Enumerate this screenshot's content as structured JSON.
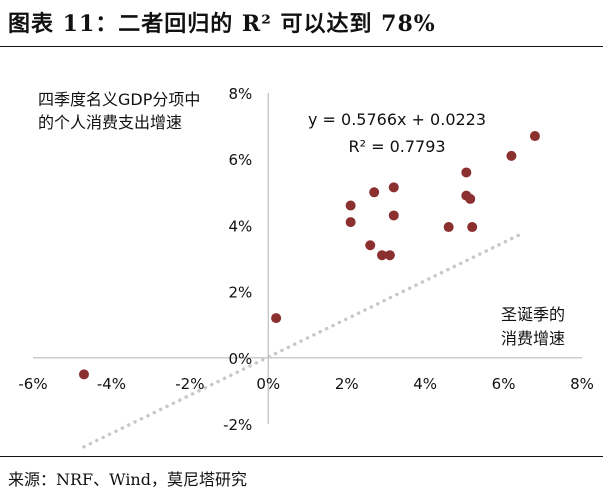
{
  "figure": {
    "title": "图表 11：二者回归的 R² 可以达到 78%",
    "source": "来源：NRF、Wind，莫尼塔研究"
  },
  "chart_data": {
    "type": "scatter",
    "title": "",
    "ylabel": "四季度名义GDP分项中的个人消费支出增速",
    "ylabel_lines": [
      "四季度名义GDP分项中",
      "的个人消费支出增速"
    ],
    "xlabel": "圣诞季的消费增速",
    "xlabel_lines": [
      "圣诞季的",
      "消费增速"
    ],
    "xlim": [
      -6,
      8
    ],
    "ylim": [
      -2,
      8
    ],
    "x_ticks": [
      -6,
      -4,
      -2,
      0,
      2,
      4,
      6,
      8
    ],
    "y_ticks": [
      -2,
      0,
      2,
      4,
      6,
      8
    ],
    "x_tick_labels": [
      "-6%",
      "-4%",
      "-2%",
      "0%",
      "2%",
      "4%",
      "6%",
      "8%"
    ],
    "y_tick_labels": [
      "-2%",
      "0%",
      "2%",
      "4%",
      "6%",
      "8%"
    ],
    "grid": false,
    "point_color": "#8b2f2f",
    "trend_color": "#c8c8c8",
    "trendline": {
      "slope": 0.5766,
      "intercept": 0.0223,
      "x_range": [
        -4.7,
        6.5
      ]
    },
    "annotations": [
      "y = 0.5766x + 0.0223",
      "R² = 0.7793"
    ],
    "points": [
      {
        "x": -4.7,
        "y": -0.5
      },
      {
        "x": 0.2,
        "y": 1.2
      },
      {
        "x": 2.1,
        "y": 4.1
      },
      {
        "x": 2.1,
        "y": 4.6
      },
      {
        "x": 2.6,
        "y": 3.4
      },
      {
        "x": 2.7,
        "y": 5.0
      },
      {
        "x": 2.9,
        "y": 3.1
      },
      {
        "x": 3.1,
        "y": 3.1
      },
      {
        "x": 3.2,
        "y": 4.3
      },
      {
        "x": 3.2,
        "y": 5.15
      },
      {
        "x": 4.6,
        "y": 3.95
      },
      {
        "x": 5.05,
        "y": 5.6
      },
      {
        "x": 5.05,
        "y": 4.9
      },
      {
        "x": 5.15,
        "y": 4.8
      },
      {
        "x": 5.2,
        "y": 3.95
      },
      {
        "x": 6.2,
        "y": 6.1
      },
      {
        "x": 6.8,
        "y": 6.7
      }
    ]
  }
}
